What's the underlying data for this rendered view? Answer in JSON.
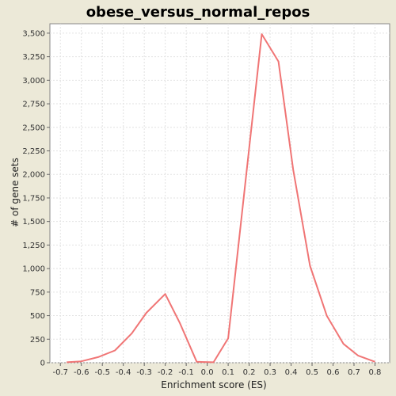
{
  "chart_data": {
    "type": "line",
    "title": "obese_versus_normal_repos",
    "xlabel": "Enrichment score (ES)",
    "ylabel": "# of gene sets",
    "xlim": [
      -0.75,
      0.87
    ],
    "ylim": [
      0,
      3600
    ],
    "grid": true,
    "x_ticks": [
      "-0.7",
      "-0.6",
      "-0.5",
      "-0.4",
      "-0.3",
      "-0.2",
      "-0.1",
      "0.0",
      "0.1",
      "0.2",
      "0.3",
      "0.4",
      "0.5",
      "0.6",
      "0.7",
      "0.8"
    ],
    "y_ticks": [
      "0",
      "250",
      "500",
      "750",
      "1,000",
      "1,250",
      "1,500",
      "1,750",
      "2,000",
      "2,250",
      "2,500",
      "2,750",
      "3,000",
      "3,250",
      "3,500"
    ],
    "series": [
      {
        "color": "#f07575",
        "x": [
          -0.67,
          -0.6,
          -0.52,
          -0.44,
          -0.36,
          -0.29,
          -0.2,
          -0.13,
          -0.05,
          0.03,
          0.1,
          0.26,
          0.34,
          0.41,
          0.49,
          0.57,
          0.65,
          0.72,
          0.8
        ],
        "y": [
          5,
          15,
          60,
          130,
          310,
          530,
          730,
          420,
          10,
          5,
          260,
          3490,
          3200,
          2050,
          1030,
          500,
          200,
          75,
          10
        ]
      }
    ]
  }
}
